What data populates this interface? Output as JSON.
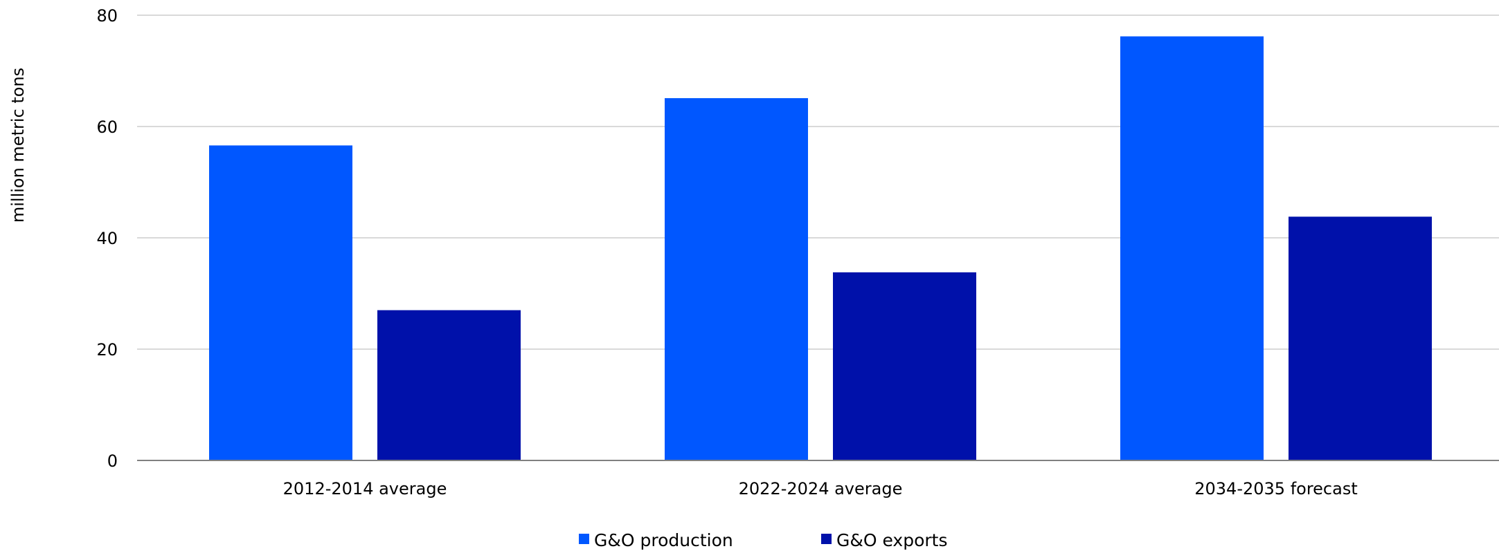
{
  "chart_data": {
    "type": "bar",
    "title": "",
    "xlabel": "",
    "ylabel": "million metric tons",
    "categories": [
      "2012-2014 average",
      "2022-2024 average",
      "2034-2035 forecast"
    ],
    "series": [
      {
        "name": "G&O production",
        "color": "#0057FF",
        "values": [
          56.6,
          65.1,
          76.2
        ]
      },
      {
        "name": "G&O exports",
        "color": "#0011AA",
        "values": [
          27.0,
          33.8,
          43.8
        ]
      }
    ],
    "ylim": [
      0,
      80
    ],
    "yticks": [
      0,
      20,
      40,
      60,
      80
    ],
    "grid": true,
    "legend_position": "bottom"
  }
}
